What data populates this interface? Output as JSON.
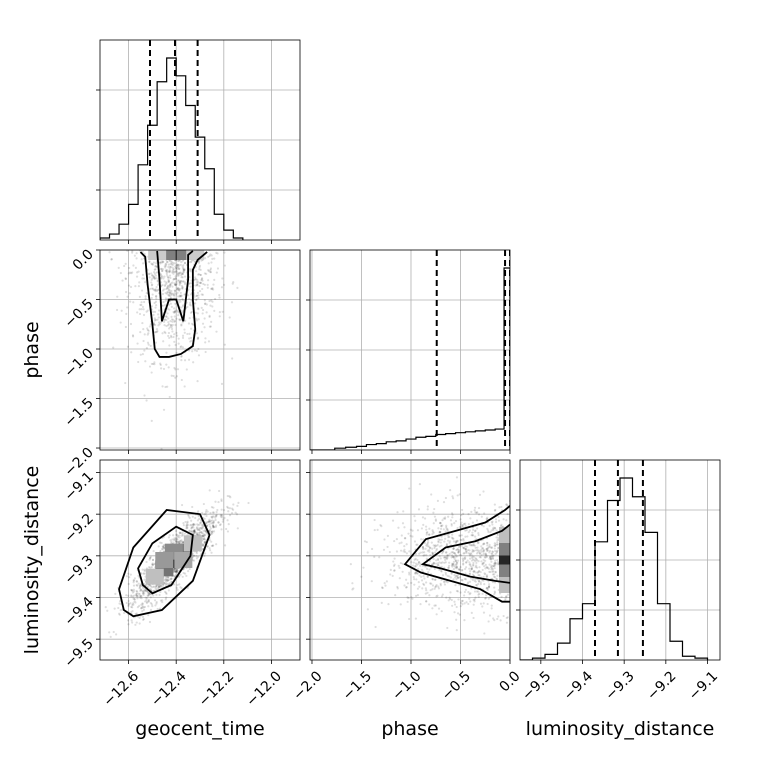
{
  "chart_data": {
    "type": "corner",
    "parameters": [
      "geocent_time",
      "phase",
      "luminosity_distance"
    ],
    "axis_labels": {
      "geocent_time": "geocent_time",
      "phase": "phase",
      "luminosity_distance": "luminosity_distance"
    },
    "ranges": {
      "geocent_time": [
        -12.72,
        -11.88
      ],
      "phase": [
        -2.02,
        0.0
      ],
      "luminosity_distance": [
        -9.55,
        -9.07
      ]
    },
    "ticks": {
      "geocent_time": [
        -12.6,
        -12.4,
        -12.2,
        -12.0
      ],
      "phase": [
        -2.0,
        -1.5,
        -1.0,
        -0.5,
        0.0
      ],
      "luminosity_distance": [
        -9.5,
        -9.4,
        -9.3,
        -9.2,
        -9.1
      ]
    },
    "tick_labels": {
      "geocent_time": [
        "−12.6",
        "−12.4",
        "−12.2",
        "−12.0"
      ],
      "phase": [
        "−2.0",
        "−1.5",
        "−1.0",
        "−0.5",
        "0.0"
      ],
      "luminosity_distance": [
        "−9.5",
        "−9.4",
        "−9.3",
        "−9.2",
        "−9.1"
      ]
    },
    "grid": true,
    "histograms": {
      "geocent_time": {
        "edges": [
          -12.72,
          -12.68,
          -12.64,
          -12.6,
          -12.56,
          -12.52,
          -12.48,
          -12.44,
          -12.4,
          -12.36,
          -12.32,
          -12.28,
          -12.24,
          -12.2,
          -12.16,
          -12.12
        ],
        "counts": [
          0.01,
          0.03,
          0.08,
          0.18,
          0.38,
          0.58,
          0.8,
          0.92,
          0.83,
          0.68,
          0.52,
          0.36,
          0.13,
          0.05,
          0.01
        ],
        "quantiles": [
          -12.51,
          -12.405,
          -12.31
        ]
      },
      "phase": {
        "edges": [
          -2.02,
          -1.77,
          -1.66,
          -1.55,
          -1.45,
          -1.35,
          -1.25,
          -1.15,
          -1.05,
          -0.95,
          -0.85,
          -0.75,
          -0.65,
          -0.55,
          -0.45,
          -0.35,
          -0.25,
          -0.15,
          -0.06,
          -0.03,
          0.0
        ],
        "counts": [
          0.0,
          0.01,
          0.015,
          0.02,
          0.03,
          0.035,
          0.045,
          0.05,
          0.06,
          0.07,
          0.075,
          0.085,
          0.09,
          0.095,
          0.1,
          0.105,
          0.11,
          0.115,
          1.0,
          1.0
        ],
        "quantiles": [
          -0.74,
          -0.05,
          0.0
        ]
      },
      "luminosity_distance": {
        "edges": [
          -9.55,
          -9.52,
          -9.49,
          -9.46,
          -9.43,
          -9.4,
          -9.37,
          -9.34,
          -9.31,
          -9.28,
          -9.25,
          -9.22,
          -9.19,
          -9.16,
          -9.13,
          -9.1
        ],
        "counts": [
          0.0,
          0.01,
          0.03,
          0.09,
          0.22,
          0.3,
          0.63,
          0.85,
          0.97,
          0.87,
          0.68,
          0.3,
          0.1,
          0.02,
          0.01
        ],
        "quantiles": [
          -9.37,
          -9.315,
          -9.255
        ]
      }
    },
    "scatter_2d": [
      {
        "x": "geocent_time",
        "y": "phase",
        "center": [
          -12.41,
          -0.2
        ],
        "spread": [
          0.09,
          0.45
        ],
        "correlation": 0.0
      },
      {
        "x": "geocent_time",
        "y": "luminosity_distance",
        "center": [
          -12.41,
          -9.31
        ],
        "spread": [
          0.095,
          0.06
        ],
        "correlation": 0.85
      },
      {
        "x": "phase",
        "y": "luminosity_distance",
        "center": [
          -0.35,
          -9.31
        ],
        "spread": [
          0.45,
          0.06
        ],
        "correlation": 0.0
      }
    ],
    "contours": [
      {
        "x": "geocent_time",
        "y": "phase",
        "levels": [
          [
            [
              -12.55,
              -0.02
            ],
            [
              -12.53,
              -0.07
            ],
            [
              -12.52,
              -0.35
            ],
            [
              -12.5,
              -0.75
            ],
            [
              -12.49,
              -1.0
            ],
            [
              -12.47,
              -1.08
            ],
            [
              -12.43,
              -1.08
            ],
            [
              -12.38,
              -1.05
            ],
            [
              -12.33,
              -0.97
            ],
            [
              -12.32,
              -0.8
            ],
            [
              -12.33,
              -0.5
            ],
            [
              -12.33,
              -0.2
            ],
            [
              -12.31,
              -0.1
            ],
            [
              -12.27,
              -0.02
            ]
          ],
          [
            [
              -12.48,
              -0.01
            ],
            [
              -12.47,
              -0.3
            ],
            [
              -12.46,
              -0.72
            ],
            [
              -12.43,
              -0.5
            ],
            [
              -12.4,
              -0.5
            ],
            [
              -12.37,
              -0.72
            ],
            [
              -12.35,
              -0.3
            ],
            [
              -12.35,
              -0.05
            ],
            [
              -12.33,
              -0.01
            ]
          ]
        ]
      },
      {
        "x": "geocent_time",
        "y": "luminosity_distance",
        "levels": [
          [
            [
              -12.62,
              -9.43
            ],
            [
              -12.64,
              -9.38
            ],
            [
              -12.58,
              -9.28
            ],
            [
              -12.44,
              -9.19
            ],
            [
              -12.3,
              -9.2
            ],
            [
              -12.26,
              -9.25
            ],
            [
              -12.33,
              -9.36
            ],
            [
              -12.46,
              -9.43
            ],
            [
              -12.58,
              -9.445
            ]
          ],
          [
            [
              -12.54,
              -9.37
            ],
            [
              -12.56,
              -9.33
            ],
            [
              -12.5,
              -9.27
            ],
            [
              -12.4,
              -9.23
            ],
            [
              -12.33,
              -9.25
            ],
            [
              -12.34,
              -9.3
            ],
            [
              -12.42,
              -9.37
            ],
            [
              -12.5,
              -9.39
            ]
          ]
        ]
      },
      {
        "x": "phase",
        "y": "luminosity_distance",
        "levels": [
          [
            [
              0.0,
              -9.41
            ],
            [
              -0.08,
              -9.41
            ],
            [
              -0.3,
              -9.38
            ],
            [
              -0.6,
              -9.36
            ],
            [
              -0.9,
              -9.34
            ],
            [
              -1.06,
              -9.32
            ],
            [
              -0.85,
              -9.26
            ],
            [
              -0.55,
              -9.24
            ],
            [
              -0.25,
              -9.22
            ],
            [
              -0.05,
              -9.19
            ],
            [
              0.0,
              -9.18
            ]
          ],
          [
            [
              0.0,
              -9.365
            ],
            [
              -0.15,
              -9.36
            ],
            [
              -0.4,
              -9.35
            ],
            [
              -0.7,
              -9.33
            ],
            [
              -0.88,
              -9.32
            ],
            [
              -0.65,
              -9.28
            ],
            [
              -0.35,
              -9.265
            ],
            [
              -0.08,
              -9.24
            ],
            [
              0.0,
              -9.225
            ]
          ]
        ]
      }
    ],
    "density_cells": [
      {
        "x": "geocent_time",
        "y": "phase",
        "cells": [
          [
            -12.4,
            -0.02,
            0.9
          ],
          [
            -12.44,
            -0.02,
            0.5
          ],
          [
            -12.36,
            -0.02,
            0.5
          ],
          [
            -12.48,
            -0.02,
            0.2
          ],
          [
            -12.32,
            -0.02,
            0.2
          ]
        ]
      },
      {
        "x": "geocent_time",
        "y": "luminosity_distance",
        "cells": [
          [
            -12.41,
            -9.31,
            0.85
          ],
          [
            -12.37,
            -9.29,
            0.55
          ],
          [
            -12.45,
            -9.33,
            0.55
          ],
          [
            -12.41,
            -9.29,
            0.45
          ],
          [
            -12.45,
            -9.31,
            0.4
          ],
          [
            -12.37,
            -9.31,
            0.35
          ],
          [
            -12.49,
            -9.35,
            0.25
          ],
          [
            -12.33,
            -9.27,
            0.25
          ]
        ]
      },
      {
        "x": "phase",
        "y": "luminosity_distance",
        "cells": [
          [
            -0.02,
            -9.31,
            0.85
          ],
          [
            -0.02,
            -9.28,
            0.5
          ],
          [
            -0.02,
            -9.34,
            0.5
          ],
          [
            -0.02,
            -9.25,
            0.25
          ],
          [
            -0.02,
            -9.37,
            0.25
          ]
        ]
      }
    ]
  }
}
